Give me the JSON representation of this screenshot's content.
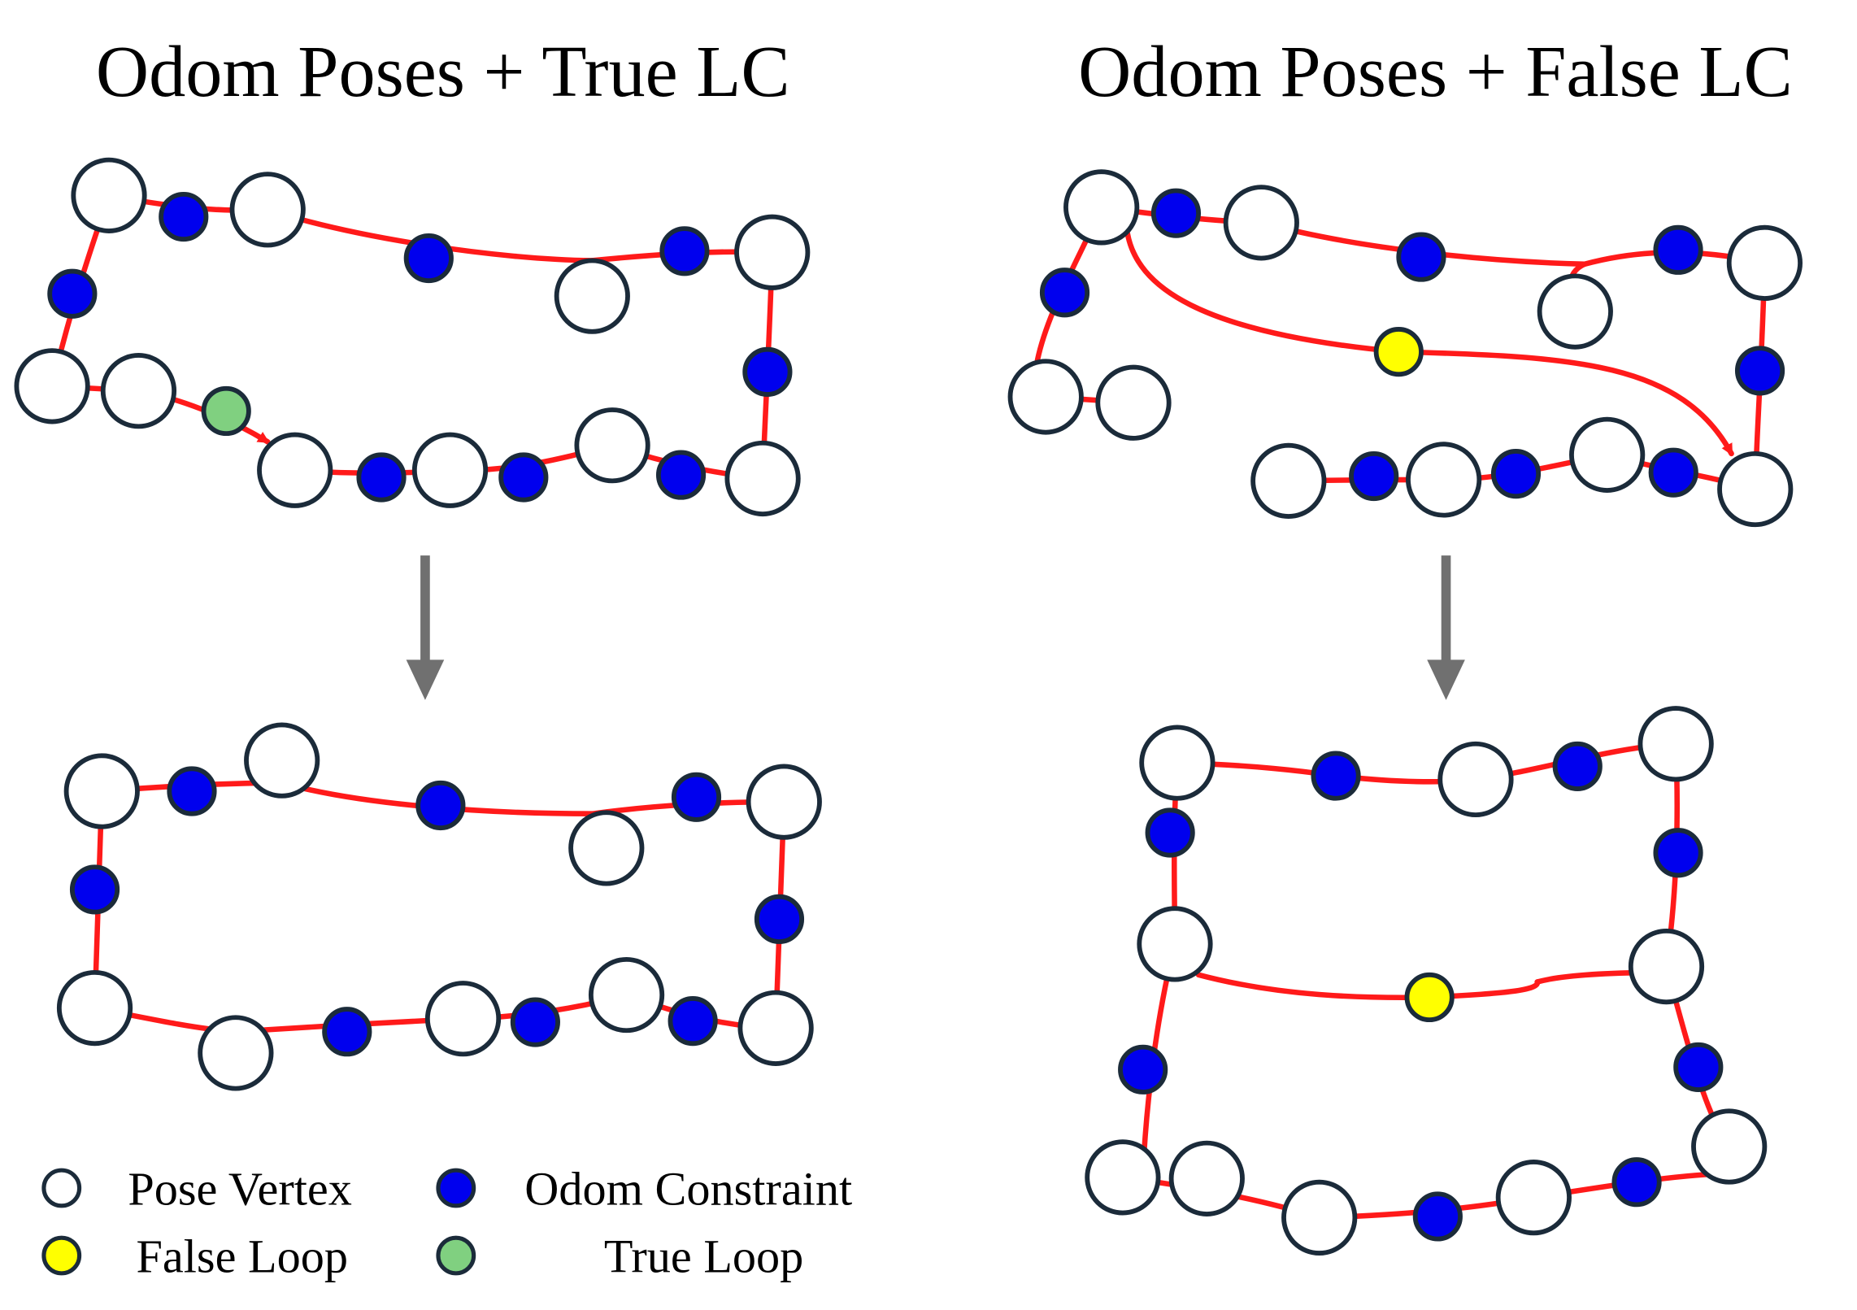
{
  "titles": {
    "left": "Odom Poses + True LC",
    "right": "Odom Poses + False LC"
  },
  "legend": {
    "pose_vertex": "Pose Vertex",
    "odom_constraint": "Odom Constraint",
    "false_loop": "False Loop",
    "true_loop": "True Loop"
  },
  "colors": {
    "pose_fill": "#ffffff",
    "node_stroke": "#1b2b3a",
    "odom_constraint": "#0000ee",
    "false_loop": "#ffff00",
    "true_loop": "#80d080",
    "edge": "#ff1a1a",
    "arrow": "#707070"
  }
}
